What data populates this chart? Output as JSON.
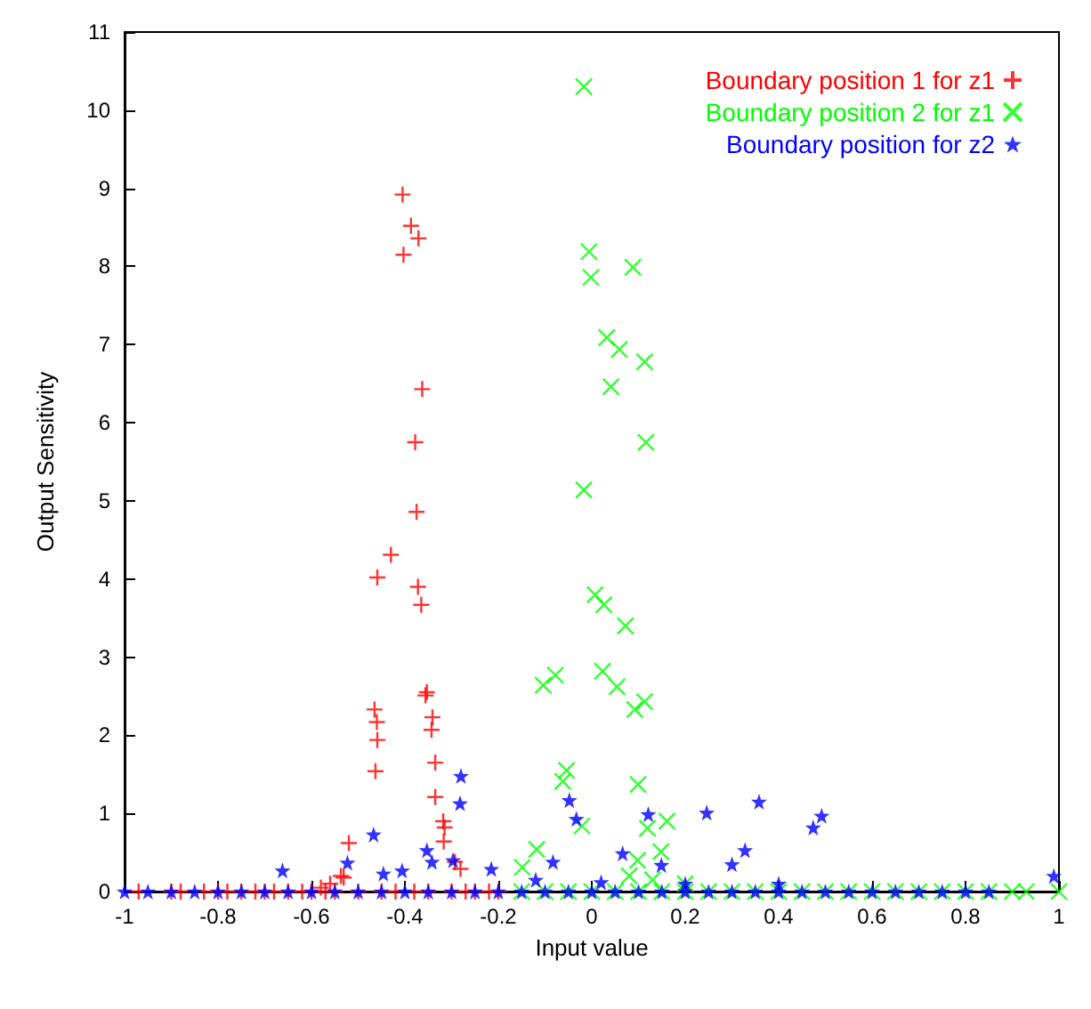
{
  "chart_data": {
    "type": "scatter",
    "xlabel": "Input value",
    "ylabel": "Output Sensitivity",
    "xlim": [
      -1,
      1
    ],
    "ylim": [
      0,
      11
    ],
    "xticks": [
      -1,
      -0.8,
      -0.6,
      -0.4,
      -0.2,
      0,
      0.2,
      0.4,
      0.6,
      0.8,
      1
    ],
    "yticks": [
      0,
      1,
      2,
      3,
      4,
      5,
      6,
      7,
      8,
      9,
      10,
      11
    ],
    "grid": false,
    "legend": "top right",
    "series": [
      {
        "name": "Boundary position 1 for z1",
        "color": "#ff0000",
        "marker": "cross",
        "x": [
          -0.405,
          -0.387,
          -0.371,
          -0.403,
          -0.363,
          -0.378,
          -0.375,
          -0.43,
          -0.459,
          -0.372,
          -0.365,
          -0.353,
          -0.356,
          -0.465,
          -0.46,
          -0.341,
          -0.343,
          -0.459,
          -0.335,
          -0.463,
          -0.335,
          -0.318,
          -0.315,
          -0.317,
          -0.52,
          -0.531,
          -0.293,
          -0.281,
          -0.537,
          -0.58,
          -0.56,
          -0.97,
          -0.9,
          -0.88,
          -0.83,
          -0.8,
          -0.78,
          -0.75,
          -0.72,
          -0.7,
          -0.68,
          -0.65,
          -0.62,
          -0.6,
          -0.57,
          -0.55,
          -0.5,
          -0.45,
          -0.42,
          -0.38,
          -0.35,
          -0.3,
          -0.27,
          -0.25,
          -0.22,
          -0.2
        ],
        "values": [
          8.92,
          8.52,
          8.36,
          8.15,
          6.43,
          5.75,
          4.86,
          4.31,
          4.02,
          3.9,
          3.67,
          2.55,
          2.51,
          2.33,
          2.17,
          2.23,
          2.07,
          1.94,
          1.65,
          1.54,
          1.21,
          0.9,
          0.82,
          0.64,
          0.62,
          0.18,
          0.38,
          0.29,
          0.2,
          0.05,
          0.1,
          0,
          0,
          0,
          0,
          0,
          0,
          0,
          0,
          0,
          0,
          0,
          0,
          0,
          0,
          0,
          0,
          0,
          0,
          0,
          0,
          0,
          0,
          0,
          0,
          0
        ]
      },
      {
        "name": "Boundary position 2 for z1",
        "color": "#00ff00",
        "marker": "x",
        "x": [
          -0.017,
          -0.006,
          -0.002,
          0.088,
          0.032,
          0.059,
          0.113,
          0.041,
          0.116,
          -0.017,
          0.007,
          0.026,
          0.072,
          -0.104,
          -0.078,
          0.023,
          0.054,
          0.092,
          0.113,
          -0.054,
          -0.062,
          0.099,
          -0.021,
          0.119,
          0.161,
          -0.118,
          0.148,
          0.098,
          -0.149,
          -0.15,
          -0.1,
          -0.05,
          0,
          0.05,
          0.1,
          0.15,
          0.2,
          0.25,
          0.3,
          0.35,
          0.4,
          0.45,
          0.5,
          0.55,
          0.6,
          0.65,
          0.7,
          0.75,
          0.8,
          0.85,
          0.9,
          0.93,
          1,
          0.08,
          0.13,
          0.2
        ],
        "values": [
          10.3,
          8.19,
          7.86,
          7.99,
          7.09,
          6.94,
          6.78,
          6.46,
          5.75,
          5.14,
          3.8,
          3.67,
          3.4,
          2.64,
          2.77,
          2.82,
          2.62,
          2.33,
          2.43,
          1.55,
          1.41,
          1.37,
          0.84,
          0.81,
          0.9,
          0.54,
          0.51,
          0.4,
          0.31,
          0,
          0,
          0,
          0,
          0,
          0,
          0,
          0,
          0,
          0,
          0,
          0,
          0,
          0,
          0,
          0,
          0,
          0,
          0,
          0,
          0,
          0,
          0,
          0,
          0.2,
          0.15,
          0.1
        ]
      },
      {
        "name": "Boundary position for z2",
        "color": "#0000ff",
        "marker": "star",
        "x": [
          -0.048,
          -0.033,
          0.121,
          0.246,
          0.358,
          0.474,
          0.492,
          0.066,
          0.328,
          0.3,
          0.149,
          -0.083,
          -0.28,
          -0.282,
          -0.467,
          -0.523,
          -0.353,
          -0.342,
          -0.297,
          -0.215,
          -0.446,
          -0.406,
          -0.662,
          0.989,
          -1,
          -0.95,
          -0.9,
          -0.85,
          -0.8,
          -0.75,
          -0.7,
          -0.65,
          -0.6,
          -0.55,
          -0.5,
          -0.45,
          -0.4,
          -0.35,
          -0.3,
          -0.25,
          -0.2,
          -0.15,
          -0.1,
          -0.05,
          0,
          0.05,
          0.1,
          0.15,
          0.2,
          0.25,
          0.3,
          0.35,
          0.4,
          0.45,
          0.5,
          0.55,
          0.6,
          0.65,
          0.7,
          0.75,
          0.8,
          0.85,
          -0.12,
          0.02,
          0.2,
          0.4
        ],
        "values": [
          1.17,
          0.93,
          0.99,
          1.01,
          1.15,
          0.82,
          0.97,
          0.49,
          0.53,
          0.35,
          0.34,
          0.38,
          1.48,
          1.13,
          0.73,
          0.37,
          0.53,
          0.38,
          0.4,
          0.29,
          0.23,
          0.27,
          0.27,
          0.2,
          0,
          0,
          0,
          0,
          0,
          0,
          0,
          0,
          0,
          0,
          0,
          0,
          0,
          0,
          0,
          0,
          0,
          0,
          0,
          0,
          0,
          0,
          0,
          0,
          0,
          0,
          0,
          0,
          0,
          0,
          0,
          0,
          0,
          0,
          0,
          0,
          0,
          0,
          0.15,
          0.12,
          0.1,
          0.1
        ]
      }
    ]
  }
}
